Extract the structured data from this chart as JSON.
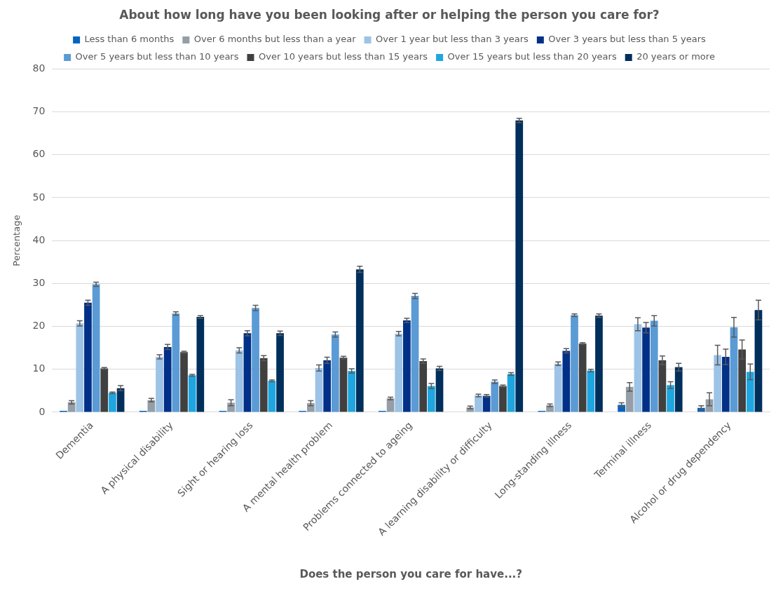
{
  "chart_data": {
    "type": "bar",
    "title": "About how long have you been looking after or helping the person you care for?",
    "xlabel": "Does the person you care for have...?",
    "ylabel": "Percentage",
    "categories": [
      "Dementia",
      "A physical disability",
      "Sight or hearing loss",
      "A mental health problem",
      "Problems connected to ageing",
      "A learning disability or difficulty",
      "Long-standing illness",
      "Terminal illness",
      "Alcohol or drug dependency"
    ],
    "series": [
      {
        "name": "Less than 6 months",
        "color": "#0563c1",
        "values": [
          0.3,
          0.3,
          0.3,
          0.3,
          0.3,
          0,
          0.3,
          1.7,
          1.0
        ],
        "errors": [
          null,
          null,
          null,
          null,
          null,
          null,
          null,
          0.5,
          0.5
        ]
      },
      {
        "name": "Over 6 months but less than a year",
        "color": "#959ea6",
        "values": [
          2.3,
          2.8,
          2.2,
          2.1,
          3.2,
          1.1,
          1.6,
          5.9,
          3.0
        ],
        "errors": [
          0.4,
          0.4,
          0.7,
          0.6,
          0.3,
          0.3,
          0.3,
          1.0,
          1.5
        ]
      },
      {
        "name": "Over 1 year but less than 3 years",
        "color": "#9dc3e6",
        "values": [
          20.7,
          12.9,
          14.4,
          10.3,
          18.3,
          3.9,
          11.3,
          20.5,
          13.3
        ],
        "errors": [
          0.6,
          0.5,
          0.6,
          0.7,
          0.5,
          0.3,
          0.4,
          1.5,
          2.3
        ]
      },
      {
        "name": "Over 3 years but less than 5 years",
        "color": "#003087",
        "values": [
          25.5,
          15.2,
          18.4,
          12.1,
          21.4,
          3.8,
          14.3,
          19.7,
          12.9
        ],
        "errors": [
          0.6,
          0.6,
          0.6,
          0.7,
          0.5,
          0.3,
          0.5,
          1.2,
          1.8
        ]
      },
      {
        "name": "Over 5 years but less than 10 years",
        "color": "#5b9bd5",
        "values": [
          29.8,
          23.0,
          24.3,
          18.1,
          27.1,
          7.1,
          22.6,
          21.3,
          19.8
        ],
        "errors": [
          0.5,
          0.4,
          0.6,
          0.6,
          0.6,
          0.4,
          0.3,
          1.2,
          2.3
        ]
      },
      {
        "name": "Over 10 years but less than 15 years",
        "color": "#404040",
        "values": [
          10.2,
          14.0,
          12.6,
          12.7,
          11.9,
          6.1,
          16.0,
          12.1,
          14.6
        ],
        "errors": [
          0.2,
          0.2,
          0.6,
          0.3,
          0.5,
          0.2,
          0.2,
          1.0,
          2.2
        ]
      },
      {
        "name": "Over 15 years but less than 20 years",
        "color": "#1fa6e0",
        "values": [
          4.5,
          8.6,
          7.3,
          9.6,
          6.1,
          8.9,
          9.7,
          6.3,
          9.4
        ],
        "errors": [
          0.2,
          0.2,
          0.2,
          0.5,
          0.6,
          0.3,
          0.3,
          0.8,
          1.8
        ]
      },
      {
        "name": "20 years or more",
        "color": "#002f5c",
        "values": [
          5.6,
          22.2,
          18.4,
          33.3,
          10.2,
          68.0,
          22.5,
          10.5,
          23.8
        ],
        "errors": [
          0.6,
          0.3,
          0.5,
          0.7,
          0.5,
          0.5,
          0.4,
          0.9,
          2.3
        ]
      }
    ],
    "ylim": [
      0,
      80
    ],
    "yticks": [
      0,
      10,
      20,
      30,
      40,
      50,
      60,
      70,
      80
    ],
    "grid": "y",
    "legend": "top"
  }
}
